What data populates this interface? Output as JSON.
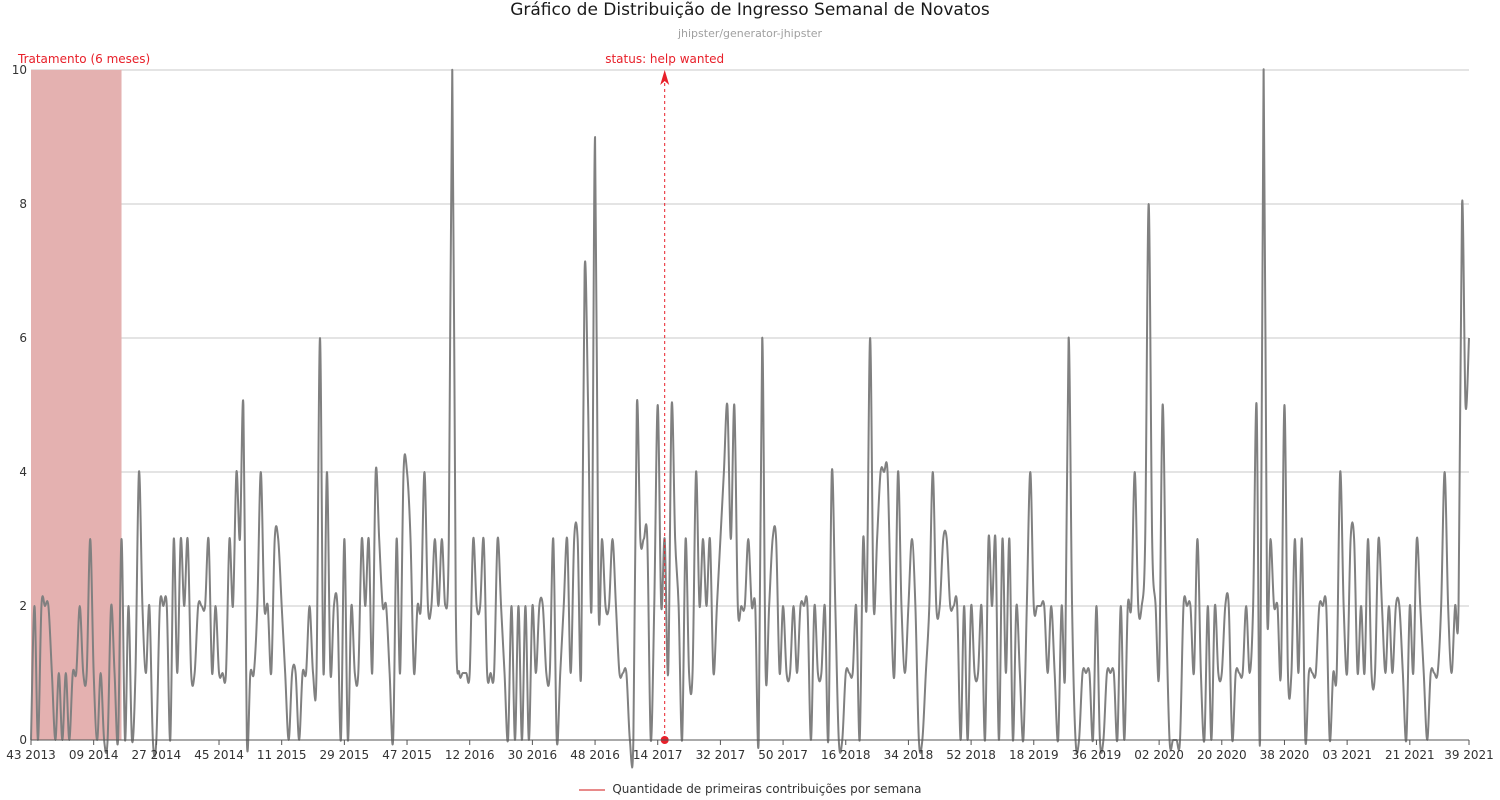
{
  "chart_data": {
    "type": "line",
    "title": "Gráfico de Distribuição de Ingresso Semanal de Novatos",
    "subtitle": "jhipster/generator-jhipster",
    "ylim": [
      0,
      10
    ],
    "y_ticks": [
      0,
      2,
      4,
      6,
      8,
      10
    ],
    "x_tick_labels": [
      "43 2013",
      "09 2014",
      "27 2014",
      "45 2014",
      "11 2015",
      "29 2015",
      "47 2015",
      "12 2016",
      "30 2016",
      "48 2016",
      "14 2017",
      "32 2017",
      "50 2017",
      "16 2018",
      "34 2018",
      "52 2018",
      "18 2019",
      "36 2019",
      "02 2020",
      "20 2020",
      "38 2020",
      "03 2021",
      "21 2021",
      "39 2021"
    ],
    "series": [
      {
        "name": "Quantidade de primeiras contribuições por semana",
        "color": "#808080",
        "values": [
          0,
          2,
          0,
          2,
          2,
          2,
          1,
          0,
          1,
          0,
          1,
          0,
          1,
          1,
          2,
          1,
          1,
          3,
          1,
          0,
          1,
          0,
          0,
          2,
          1,
          0,
          3,
          0,
          2,
          0,
          1,
          4,
          2,
          1,
          2,
          0,
          0,
          2,
          2,
          2,
          0,
          3,
          1,
          3,
          2,
          3,
          1,
          1,
          2,
          2,
          2,
          3,
          1,
          2,
          1,
          1,
          1,
          3,
          2,
          4,
          3,
          5,
          0,
          1,
          1,
          2,
          4,
          2,
          2,
          1,
          3,
          3,
          2,
          1,
          0,
          1,
          1,
          0,
          1,
          1,
          2,
          1,
          1,
          6,
          1,
          4,
          1,
          2,
          2,
          0,
          3,
          0,
          2,
          1,
          1,
          3,
          2,
          3,
          1,
          4,
          3,
          2,
          2,
          1,
          0,
          3,
          1,
          4,
          4,
          3,
          1,
          2,
          2,
          4,
          2,
          2,
          3,
          2,
          3,
          2,
          3,
          10,
          2,
          1,
          1,
          1,
          1,
          3,
          2,
          2,
          3,
          1,
          1,
          1,
          3,
          2,
          1,
          0,
          2,
          0,
          2,
          0,
          2,
          0,
          2,
          1,
          2,
          2,
          1,
          1,
          3,
          0,
          1,
          2,
          3,
          1,
          3,
          3,
          1,
          7,
          5,
          2,
          9,
          2,
          3,
          2,
          2,
          3,
          2,
          1,
          1,
          1,
          0,
          0,
          5,
          3,
          3,
          3,
          0,
          2,
          5,
          2,
          3,
          1,
          5,
          3,
          2,
          0,
          3,
          1,
          1,
          4,
          2,
          3,
          2,
          3,
          1,
          2,
          3,
          4,
          5,
          3,
          5,
          2,
          2,
          2,
          3,
          2,
          2,
          0,
          6,
          1,
          2,
          3,
          3,
          1,
          2,
          1,
          1,
          2,
          1,
          2,
          2,
          2,
          0,
          2,
          1,
          1,
          2,
          0,
          4,
          2,
          0,
          0,
          1,
          1,
          1,
          2,
          0,
          3,
          2,
          6,
          2,
          3,
          4,
          4,
          4,
          2,
          1,
          4,
          2,
          1,
          2,
          3,
          2,
          0,
          0,
          1,
          2,
          4,
          2,
          2,
          3,
          3,
          2,
          2,
          2,
          0,
          2,
          0,
          2,
          1,
          1,
          2,
          0,
          3,
          2,
          3,
          0,
          3,
          1,
          3,
          0,
          2,
          1,
          0,
          2,
          4,
          2,
          2,
          2,
          2,
          1,
          2,
          1,
          0,
          2,
          1,
          6,
          2,
          0,
          0,
          1,
          1,
          1,
          0,
          2,
          0,
          0,
          1,
          1,
          1,
          0,
          2,
          0,
          2,
          2,
          4,
          2,
          2,
          3,
          8,
          3,
          2,
          1,
          5,
          2,
          0,
          0,
          0,
          0,
          2,
          2,
          2,
          1,
          3,
          1,
          0,
          2,
          0,
          2,
          1,
          1,
          2,
          2,
          0,
          1,
          1,
          1,
          2,
          1,
          2,
          5,
          0,
          10,
          2,
          3,
          2,
          2,
          1,
          5,
          1,
          1,
          3,
          1,
          3,
          0,
          1,
          1,
          1,
          2,
          2,
          2,
          0,
          1,
          1,
          4,
          2,
          1,
          3,
          3,
          1,
          2,
          1,
          3,
          1,
          1,
          3,
          2,
          1,
          2,
          1,
          2,
          2,
          1,
          0,
          2,
          1,
          3,
          2,
          1,
          0,
          1,
          1,
          1,
          2,
          4,
          2,
          1,
          2,
          2,
          8,
          5,
          6
        ]
      }
    ],
    "annotations": {
      "treatment_label": "Tratamento (6 meses)",
      "treatment_range": [
        0,
        26
      ],
      "event_label": "status: help wanted",
      "event_index": 182
    },
    "legend_position": "bottom",
    "grid": true,
    "colors": {
      "line": "#808080",
      "treatment_fill": "#e4b1b0",
      "event": "#e8202a",
      "grid": "#c8c8c8"
    }
  }
}
